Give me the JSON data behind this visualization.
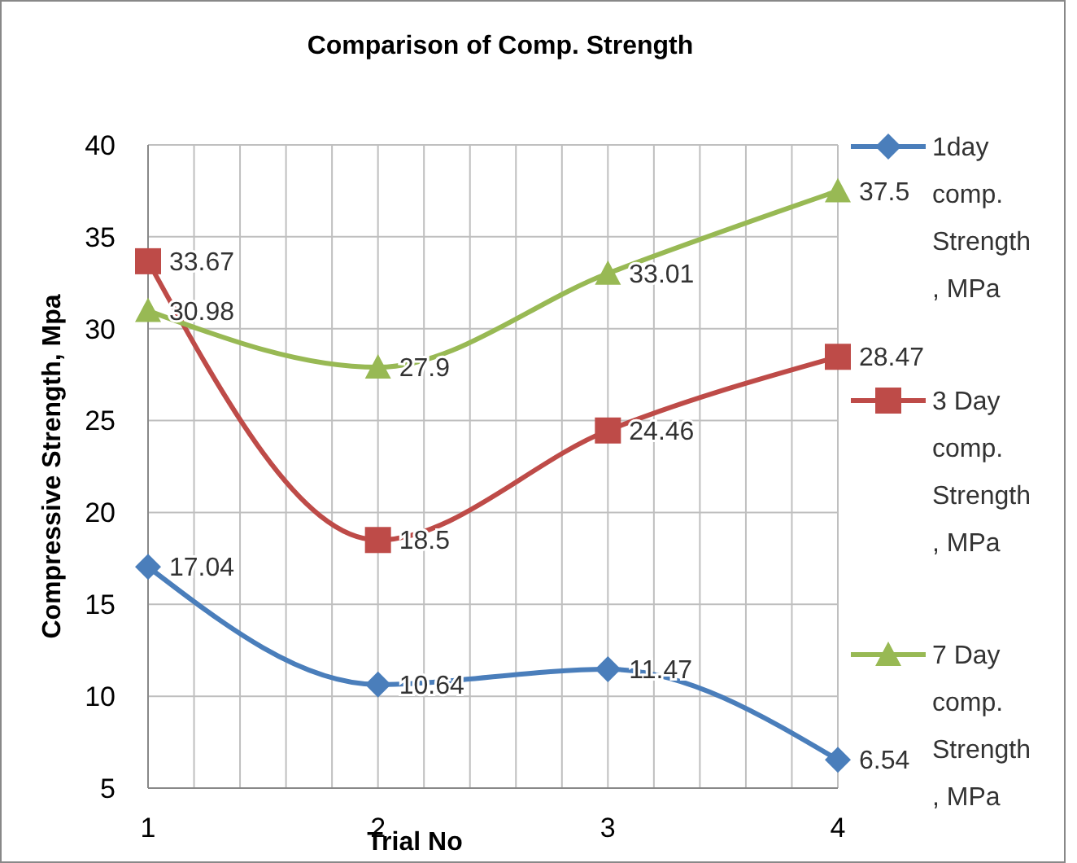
{
  "chart_data": {
    "type": "line",
    "title": "Comparison of Comp. Strength",
    "xlabel": "Trial No",
    "ylabel": "Compressive Strength, Mpa",
    "x": [
      1,
      2,
      3,
      4
    ],
    "series": [
      {
        "name": "1day comp. Strength , MPa",
        "color": "#4a7ebb",
        "marker": "diamond",
        "values": [
          17.04,
          10.64,
          11.47,
          6.54
        ]
      },
      {
        "name": "3 Day comp. Strength , MPa",
        "color": "#be4b48",
        "marker": "square",
        "values": [
          33.67,
          18.5,
          24.46,
          28.47
        ]
      },
      {
        "name": "7 Day comp. Strength , MPa",
        "color": "#98b954",
        "marker": "triangle",
        "values": [
          30.98,
          27.9,
          33.01,
          37.5
        ]
      }
    ],
    "xlim": [
      1,
      4
    ],
    "xticks": [
      1,
      {
        "value": 1.2,
        "label": null
      },
      {
        "value": 1.4,
        "label": null
      },
      {
        "value": 1.6,
        "label": null
      },
      {
        "value": 1.8,
        "label": null
      },
      2,
      {
        "value": 2.2,
        "label": null
      },
      {
        "value": 2.4,
        "label": null
      },
      {
        "value": 2.6,
        "label": null
      },
      {
        "value": 2.8,
        "label": null
      },
      3,
      {
        "value": 3.2,
        "label": null
      },
      {
        "value": 3.4,
        "label": null
      },
      {
        "value": 3.6,
        "label": null
      },
      {
        "value": 3.8,
        "label": null
      },
      4
    ],
    "ylim": [
      5,
      40
    ],
    "yticks": [
      5,
      10,
      15,
      20,
      25,
      30,
      35,
      40
    ],
    "grid": true,
    "legend": "right",
    "data_labels": true,
    "line_style": "solid"
  }
}
